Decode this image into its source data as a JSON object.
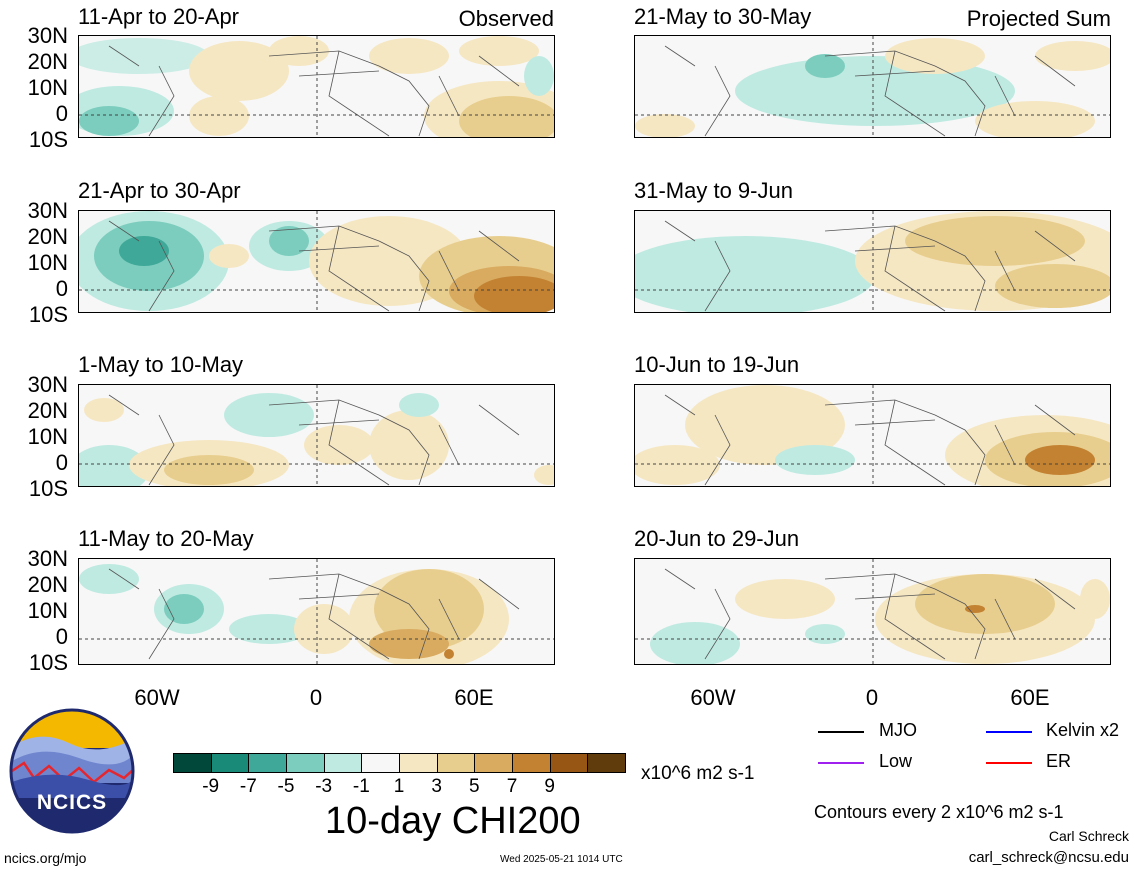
{
  "panels": [
    {
      "title": "11-Apr to 20-Apr",
      "corner": "Observed"
    },
    {
      "title": "21-Apr to 30-Apr",
      "corner": ""
    },
    {
      "title": "1-May to 10-May",
      "corner": ""
    },
    {
      "title": "11-May to 20-May",
      "corner": ""
    },
    {
      "title": "21-May to 30-May",
      "corner": "Projected Sum"
    },
    {
      "title": "31-May to 9-Jun",
      "corner": ""
    },
    {
      "title": "10-Jun to 19-Jun",
      "corner": ""
    },
    {
      "title": "20-Jun to 29-Jun",
      "corner": ""
    }
  ],
  "lat_labels": [
    "30N",
    "20N",
    "10N",
    "0",
    "10S"
  ],
  "lon_labels": [
    "60W",
    "0",
    "60E"
  ],
  "colorbar": {
    "colors": [
      "#01473a",
      "#1a8a78",
      "#3fa898",
      "#7ccdbe",
      "#bfeae1",
      "#f7f7f7",
      "#f6e7c3",
      "#e8ce8e",
      "#d9ab60",
      "#c38232",
      "#985614",
      "#603b0c"
    ],
    "labels": [
      "-9",
      "-7",
      "-5",
      "-3",
      "-1",
      "1",
      "3",
      "5",
      "7",
      "9"
    ],
    "units": "x10^6 m2 s-1",
    "title": "10-day CHI200"
  },
  "legend": [
    {
      "label": "MJO",
      "color": "#000000"
    },
    {
      "label": "Kelvin x2",
      "color": "#0000ff"
    },
    {
      "label": "Low",
      "color": "#a020f0"
    },
    {
      "label": "ER",
      "color": "#ff0000"
    }
  ],
  "contours_note": "Contours every 2 x10^6 m2 s-1",
  "author": "Carl Schreck",
  "email": "carl_schreck@ncsu.edu",
  "site": "ncics.org/mjo",
  "timestamp": "Wed 2025-05-21 1014 UTC",
  "logo_text": "NCICS"
}
